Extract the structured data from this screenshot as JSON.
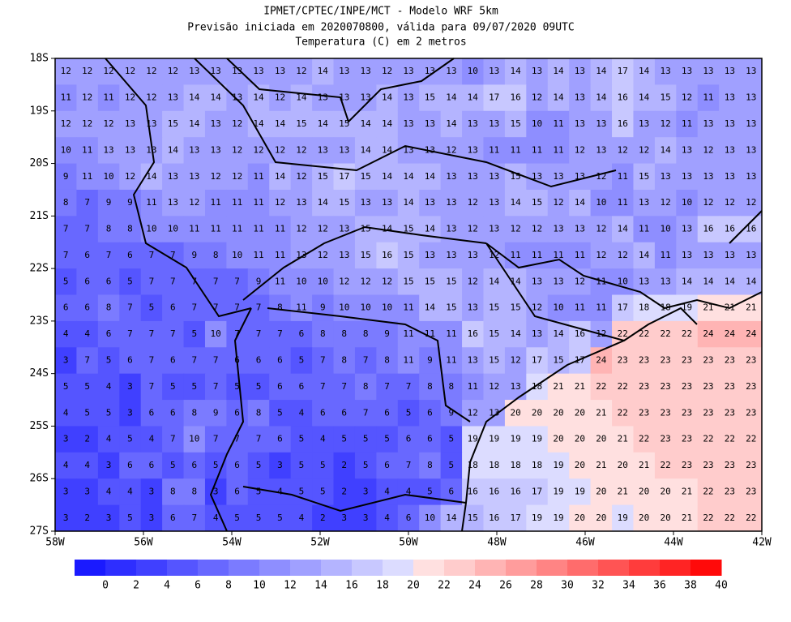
{
  "header": {
    "lines": [
      "IPMET/CPTEC/INPE/MCT - Modelo WRF 5km",
      "Previsão iniciada em 2020070800, válida para 09/07/2020 09UTC",
      "Temperatura (C) em 2 metros"
    ]
  },
  "map": {
    "lat_labels": [
      "18S",
      "19S",
      "20S",
      "21S",
      "22S",
      "23S",
      "24S",
      "25S",
      "26S",
      "27S"
    ],
    "lon_labels": [
      "58W",
      "56W",
      "54W",
      "52W",
      "50W",
      "48W",
      "46W",
      "44W",
      "42W"
    ],
    "grid": [
      [
        12,
        12,
        12,
        12,
        12,
        12,
        13,
        13,
        13,
        13,
        13,
        12,
        14,
        13,
        13,
        12,
        13,
        13,
        13,
        10,
        13,
        14,
        13,
        14,
        13,
        14,
        17,
        14,
        13,
        13,
        13,
        13,
        13
      ],
      [
        11,
        12,
        11,
        12,
        12,
        13,
        14,
        14,
        13,
        14,
        12,
        14,
        13,
        13,
        13,
        14,
        13,
        15,
        14,
        14,
        17,
        16,
        12,
        14,
        13,
        14,
        16,
        14,
        15,
        12,
        11,
        13,
        13
      ],
      [
        12,
        12,
        12,
        13,
        13,
        15,
        14,
        13,
        12,
        14,
        14,
        15,
        14,
        15,
        14,
        14,
        13,
        13,
        14,
        13,
        13,
        15,
        10,
        11,
        13,
        13,
        16,
        13,
        12,
        11,
        13,
        13,
        13
      ],
      [
        10,
        11,
        13,
        13,
        13,
        14,
        13,
        13,
        12,
        12,
        12,
        12,
        13,
        13,
        14,
        14,
        13,
        13,
        12,
        13,
        11,
        11,
        11,
        11,
        12,
        13,
        12,
        12,
        14,
        13,
        12,
        13,
        13
      ],
      [
        9,
        11,
        10,
        12,
        14,
        13,
        13,
        12,
        12,
        11,
        14,
        12,
        15,
        17,
        15,
        14,
        14,
        14,
        13,
        13,
        13,
        15,
        13,
        13,
        13,
        12,
        11,
        15,
        13,
        13,
        13,
        13,
        13
      ],
      [
        8,
        7,
        9,
        9,
        11,
        13,
        12,
        11,
        11,
        11,
        12,
        13,
        14,
        15,
        13,
        13,
        14,
        13,
        13,
        12,
        13,
        14,
        15,
        12,
        14,
        10,
        11,
        13,
        12,
        10,
        12,
        12,
        12
      ],
      [
        7,
        7,
        8,
        8,
        10,
        10,
        11,
        11,
        11,
        11,
        11,
        12,
        12,
        13,
        15,
        14,
        15,
        14,
        13,
        12,
        13,
        12,
        12,
        13,
        13,
        12,
        14,
        11,
        10,
        13,
        16,
        16,
        16
      ],
      [
        7,
        6,
        7,
        6,
        7,
        7,
        9,
        8,
        10,
        11,
        11,
        13,
        12,
        13,
        15,
        16,
        15,
        13,
        13,
        13,
        12,
        11,
        11,
        11,
        11,
        12,
        12,
        14,
        11,
        13,
        13,
        13,
        13
      ],
      [
        5,
        6,
        6,
        5,
        7,
        7,
        7,
        7,
        7,
        9,
        11,
        10,
        10,
        12,
        12,
        12,
        15,
        15,
        15,
        12,
        14,
        14,
        13,
        13,
        12,
        11,
        10,
        13,
        13,
        14,
        14,
        14,
        14
      ],
      [
        6,
        6,
        8,
        7,
        5,
        6,
        7,
        7,
        7,
        7,
        8,
        11,
        9,
        10,
        10,
        10,
        11,
        14,
        15,
        13,
        15,
        15,
        12,
        10,
        11,
        11,
        17,
        18,
        18,
        19,
        21,
        21,
        21
      ],
      [
        4,
        4,
        6,
        7,
        7,
        7,
        5,
        10,
        7,
        7,
        7,
        6,
        8,
        8,
        8,
        9,
        11,
        11,
        11,
        16,
        15,
        14,
        13,
        14,
        16,
        12,
        22,
        22,
        22,
        22,
        24,
        24,
        24
      ],
      [
        3,
        7,
        5,
        6,
        7,
        6,
        7,
        7,
        6,
        6,
        6,
        5,
        7,
        8,
        7,
        8,
        11,
        9,
        11,
        13,
        15,
        12,
        17,
        15,
        17,
        24,
        23,
        23,
        23,
        23,
        23,
        23,
        23
      ],
      [
        5,
        5,
        4,
        3,
        7,
        5,
        5,
        7,
        5,
        5,
        6,
        6,
        7,
        7,
        8,
        7,
        7,
        8,
        8,
        11,
        12,
        13,
        18,
        21,
        21,
        22,
        22,
        23,
        23,
        23,
        23,
        23,
        23
      ],
      [
        4,
        5,
        5,
        3,
        6,
        6,
        8,
        9,
        6,
        8,
        5,
        4,
        6,
        6,
        7,
        6,
        5,
        6,
        9,
        12,
        13,
        20,
        20,
        20,
        20,
        21,
        22,
        23,
        23,
        23,
        23,
        23,
        23
      ],
      [
        3,
        2,
        4,
        5,
        4,
        7,
        10,
        7,
        7,
        7,
        6,
        5,
        4,
        5,
        5,
        5,
        6,
        6,
        5,
        19,
        19,
        19,
        19,
        20,
        20,
        20,
        21,
        22,
        23,
        23,
        22,
        22,
        22
      ],
      [
        4,
        4,
        3,
        6,
        6,
        5,
        6,
        5,
        6,
        5,
        3,
        5,
        5,
        2,
        5,
        6,
        7,
        8,
        5,
        18,
        18,
        18,
        18,
        19,
        20,
        21,
        20,
        21,
        22,
        23,
        23,
        23,
        23
      ],
      [
        3,
        3,
        4,
        4,
        3,
        8,
        8,
        3,
        6,
        5,
        4,
        5,
        5,
        2,
        3,
        4,
        4,
        5,
        6,
        16,
        16,
        16,
        17,
        19,
        19,
        20,
        21,
        20,
        20,
        21,
        22,
        23,
        23
      ],
      [
        3,
        2,
        3,
        5,
        3,
        6,
        7,
        4,
        5,
        5,
        5,
        4,
        2,
        3,
        3,
        4,
        6,
        10,
        14,
        15,
        16,
        17,
        19,
        19,
        20,
        20,
        19,
        20,
        20,
        21,
        22,
        22,
        22
      ]
    ]
  },
  "colorbar": {
    "labels": [
      0,
      2,
      4,
      6,
      8,
      10,
      12,
      14,
      16,
      18,
      20,
      22,
      24,
      26,
      28,
      30,
      32,
      34,
      36,
      38,
      40
    ],
    "colors": [
      "#1a1aff",
      "#2e2eff",
      "#4040ff",
      "#5555ff",
      "#6868ff",
      "#7b7bff",
      "#8e8eff",
      "#a0a0ff",
      "#b4b4ff",
      "#c8c8ff",
      "#dcdcff",
      "#ffe0e0",
      "#ffcccc",
      "#ffb4b4",
      "#ff9c9c",
      "#ff8484",
      "#ff6c6c",
      "#ff5454",
      "#ff3c3c",
      "#ff2424",
      "#ff0a0a"
    ]
  }
}
